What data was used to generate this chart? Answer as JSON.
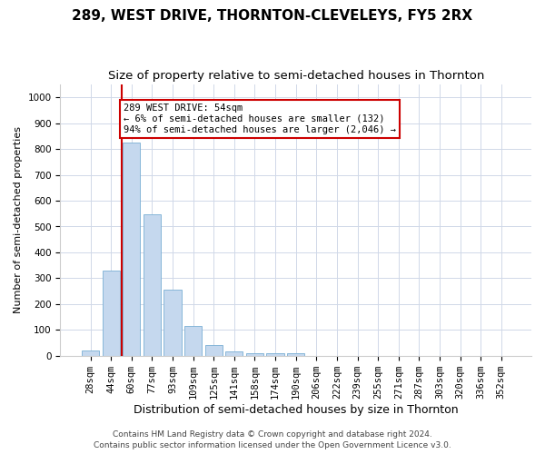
{
  "title": "289, WEST DRIVE, THORNTON-CLEVELEYS, FY5 2RX",
  "subtitle": "Size of property relative to semi-detached houses in Thornton",
  "xlabel": "Distribution of semi-detached houses by size in Thornton",
  "ylabel": "Number of semi-detached properties",
  "categories": [
    "28sqm",
    "44sqm",
    "60sqm",
    "77sqm",
    "93sqm",
    "109sqm",
    "125sqm",
    "141sqm",
    "158sqm",
    "174sqm",
    "190sqm",
    "206sqm",
    "222sqm",
    "239sqm",
    "255sqm",
    "271sqm",
    "287sqm",
    "303sqm",
    "320sqm",
    "336sqm",
    "352sqm"
  ],
  "values": [
    20,
    330,
    825,
    548,
    255,
    115,
    40,
    18,
    10,
    10,
    8,
    0,
    0,
    0,
    0,
    0,
    0,
    0,
    0,
    0,
    0
  ],
  "bar_color": "#c5d8ee",
  "bar_edge_color": "#7aafd4",
  "vline_color": "#cc0000",
  "annotation_text": "289 WEST DRIVE: 54sqm\n← 6% of semi-detached houses are smaller (132)\n94% of semi-detached houses are larger (2,046) →",
  "annotation_box_color": "#ffffff",
  "annotation_box_edge_color": "#cc0000",
  "ylim": [
    0,
    1050
  ],
  "yticks": [
    0,
    100,
    200,
    300,
    400,
    500,
    600,
    700,
    800,
    900,
    1000
  ],
  "grid_color": "#d0d8e8",
  "background_color": "#ffffff",
  "footer_line1": "Contains HM Land Registry data © Crown copyright and database right 2024.",
  "footer_line2": "Contains public sector information licensed under the Open Government Licence v3.0.",
  "title_fontsize": 11,
  "subtitle_fontsize": 9.5,
  "xlabel_fontsize": 9,
  "ylabel_fontsize": 8,
  "tick_fontsize": 7.5,
  "footer_fontsize": 6.5
}
